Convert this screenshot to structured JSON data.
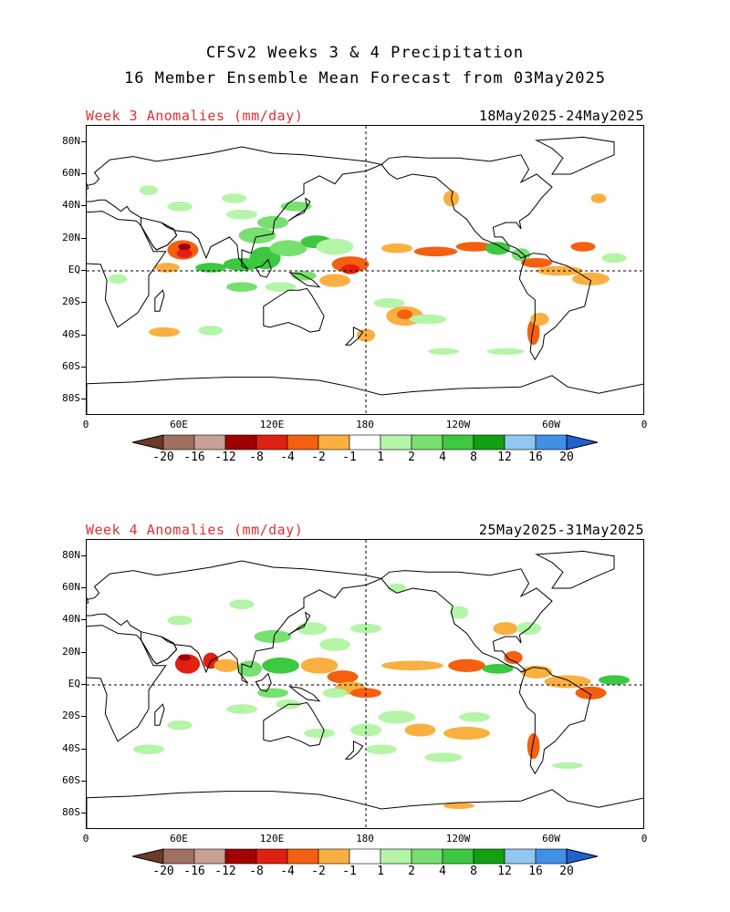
{
  "title_line1": "CFSv2 Weeks 3 & 4 Precipitation",
  "title_line2": "16 Member Ensemble Mean Forecast from 03May2025",
  "panels": [
    {
      "label": "Week 3 Anomalies (mm/day)",
      "dates": "18May2025-24May2025"
    },
    {
      "label": "Week 4 Anomalies (mm/day)",
      "dates": "25May2025-31May2025"
    }
  ],
  "lat_labels": [
    "80N",
    "60N",
    "40N",
    "20N",
    "EQ",
    "20S",
    "40S",
    "60S",
    "80S"
  ],
  "lon_labels": [
    "0",
    "60E",
    "120E",
    "180",
    "120W",
    "60W",
    "0"
  ],
  "colorbar": {
    "labels": [
      "-20",
      "-16",
      "-12",
      "-8",
      "-4",
      "-2",
      "-1",
      "1",
      "2",
      "4",
      "8",
      "12",
      "16",
      "20"
    ],
    "colors": [
      "#6b3a2a",
      "#a07060",
      "#c8a096",
      "#a00000",
      "#e02010",
      "#f46010",
      "#f9b040",
      "#ffffff",
      "#b4f5a8",
      "#78e070",
      "#3cc840",
      "#10a010",
      "#90c8f0",
      "#4090e8",
      "#2060d0"
    ]
  }
}
